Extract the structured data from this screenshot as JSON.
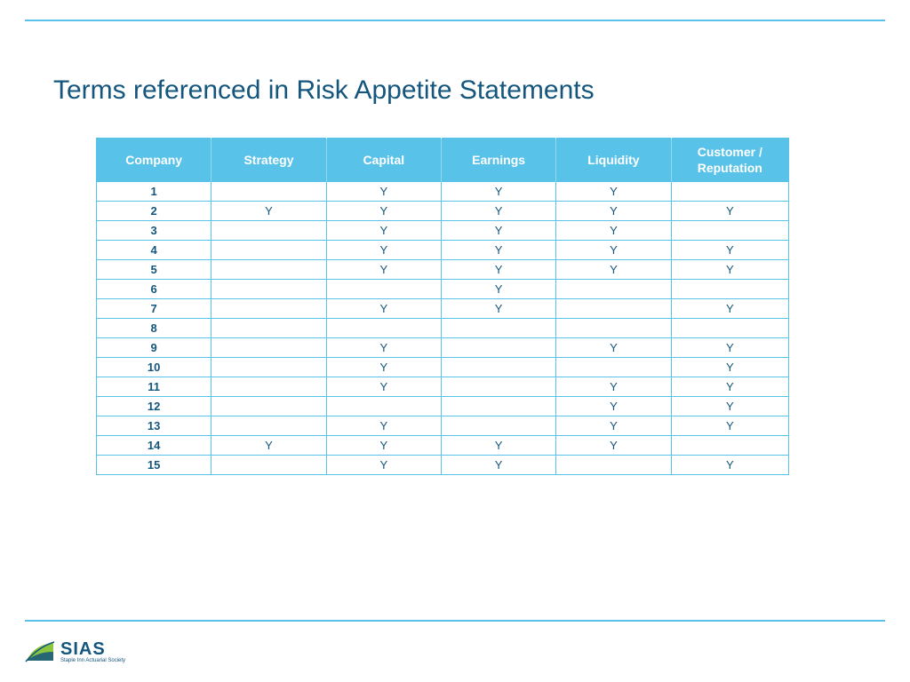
{
  "title": "Terms referenced in Risk Appetite Statements",
  "colors": {
    "accent": "#59c2e8",
    "text": "#14567d",
    "background": "#ffffff",
    "header_text": "#ffffff"
  },
  "table": {
    "type": "table",
    "columns": [
      "Company",
      "Strategy",
      "Capital",
      "Earnings",
      "Liquidity",
      "Customer / Reputation"
    ],
    "rows": [
      [
        "1",
        "",
        "Y",
        "Y",
        "Y",
        ""
      ],
      [
        "2",
        "Y",
        "Y",
        "Y",
        "Y",
        "Y"
      ],
      [
        "3",
        "",
        "Y",
        "Y",
        "Y",
        ""
      ],
      [
        "4",
        "",
        "Y",
        "Y",
        "Y",
        "Y"
      ],
      [
        "5",
        "",
        "Y",
        "Y",
        "Y",
        "Y"
      ],
      [
        "6",
        "",
        "",
        "Y",
        "",
        ""
      ],
      [
        "7",
        "",
        "Y",
        "Y",
        "",
        "Y"
      ],
      [
        "8",
        "",
        "",
        "",
        "",
        ""
      ],
      [
        "9",
        "",
        "Y",
        "",
        "Y",
        "Y"
      ],
      [
        "10",
        "",
        "Y",
        "",
        "",
        "Y"
      ],
      [
        "11",
        "",
        "Y",
        "",
        "Y",
        "Y"
      ],
      [
        "12",
        "",
        "",
        "",
        "Y",
        "Y"
      ],
      [
        "13",
        "",
        "Y",
        "",
        "Y",
        "Y"
      ],
      [
        "14",
        "Y",
        "Y",
        "Y",
        "Y",
        ""
      ],
      [
        "15",
        "",
        "Y",
        "Y",
        "",
        "Y"
      ]
    ],
    "column_widths_pct": [
      16.6,
      16.6,
      16.6,
      16.6,
      16.6,
      17
    ],
    "header_fontsize": 14,
    "cell_fontsize": 13,
    "border_color": "#59c2e8",
    "header_bg": "#59c2e8",
    "cell_text_color": "#14567d"
  },
  "logo": {
    "text": "SIAS",
    "subtitle": "Staple Inn Actuarial Society"
  }
}
